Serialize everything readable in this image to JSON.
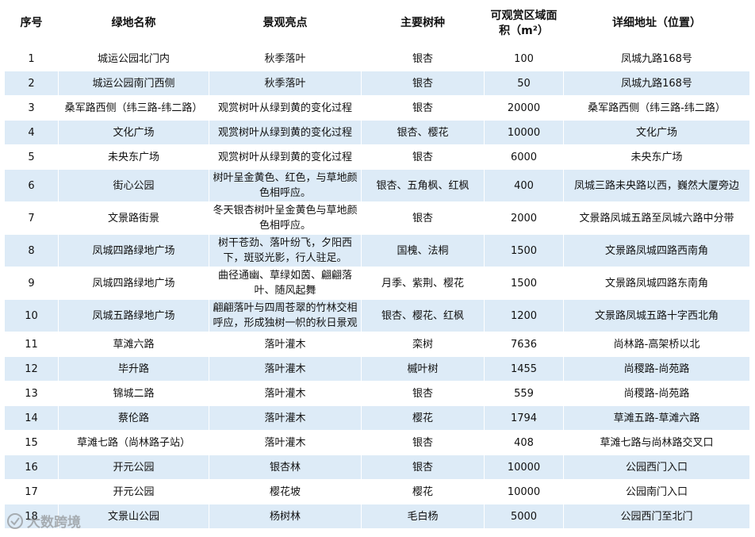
{
  "table": {
    "headers": [
      "序号",
      "绿地名称",
      "景观亮点",
      "主要树种",
      "可观赏区域面积（m²）",
      "详细地址（位置）"
    ],
    "rows": [
      [
        1,
        "城运公园北门内",
        "秋季落叶",
        "银杏",
        100,
        "凤城九路168号"
      ],
      [
        2,
        "城运公园南门西侧",
        "秋季落叶",
        "银杏",
        50,
        "凤城九路168号"
      ],
      [
        3,
        "桑军路西侧（纬三路-纬二路）",
        "观赏树叶从绿到黄的变化过程",
        "银杏",
        20000,
        "桑军路西侧（纬三路-纬二路）"
      ],
      [
        4,
        "文化广场",
        "观赏树叶从绿到黄的变化过程",
        "银杏、樱花",
        10000,
        "文化广场"
      ],
      [
        5,
        "未央东广场",
        "观赏树叶从绿到黄的变化过程",
        "银杏",
        6000,
        "未央东广场"
      ],
      [
        6,
        "街心公园",
        "树叶呈金黄色、红色，与草地颜色相呼应。",
        "银杏、五角枫、红枫",
        400,
        "凤城三路未央路以西，巍然大厦旁边"
      ],
      [
        7,
        "文景路街景",
        "冬天银杏树叶呈金黄色与草地颜色相呼应。",
        "银杏",
        2000,
        "文景路凤城五路至凤城六路中分带"
      ],
      [
        8,
        "凤城四路绿地广场",
        "树干苍劲、落叶纷飞，夕阳西下，斑驳光影，行人驻足。",
        "国槐、法桐",
        1500,
        "文景路凤城四路西南角"
      ],
      [
        9,
        "凤城四路绿地广场",
        "曲径通幽、草绿如茵、翩翩落叶、随风起舞",
        "月季、紫荆、樱花",
        1500,
        "文景路凤城四路东南角"
      ],
      [
        10,
        "凤城五路绿地广场",
        "翩翩落叶与四周苍翠的竹林交相呼应，形成独树一帜的秋日景观",
        "银杏、樱花、红枫",
        1200,
        "文景路凤城五路十字西北角"
      ],
      [
        11,
        "草滩六路",
        "落叶灌木",
        "栾树",
        7636,
        "尚林路-高架桥以北"
      ],
      [
        12,
        "毕升路",
        "落叶灌木",
        "槭叶树",
        1455,
        "尚稷路-尚苑路"
      ],
      [
        13,
        "锦城二路",
        "落叶灌木",
        "银杏",
        559,
        "尚稷路-尚苑路"
      ],
      [
        14,
        "蔡伦路",
        "落叶灌木",
        "樱花",
        1794,
        "草滩五路-草滩六路"
      ],
      [
        15,
        "草滩七路（尚林路子站）",
        "落叶灌木",
        "银杏",
        408,
        "草滩七路与尚林路交叉口"
      ],
      [
        16,
        "开元公园",
        "银杏林",
        "银杏",
        10000,
        "公园西门入口"
      ],
      [
        17,
        "开元公园",
        "樱花坡",
        "樱花",
        10000,
        "公园南门入口"
      ],
      [
        18,
        "文景山公园",
        "杨树林",
        "毛白杨",
        5000,
        "公园西门至北门"
      ]
    ]
  },
  "watermark": "大数跨境"
}
